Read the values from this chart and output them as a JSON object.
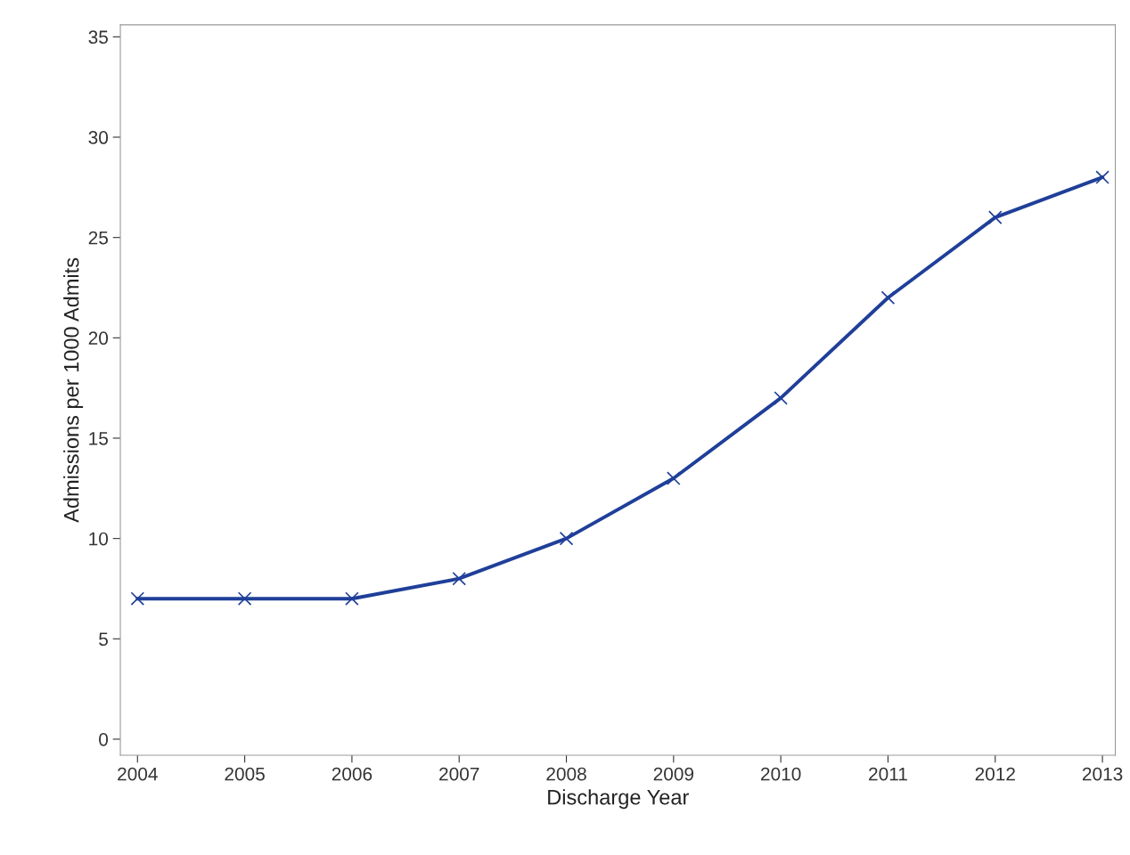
{
  "chart_data": {
    "type": "line",
    "xlabel": "Discharge Year",
    "ylabel": "Admissions per 1000 Admits",
    "x": [
      2004,
      2005,
      2006,
      2007,
      2008,
      2009,
      2010,
      2011,
      2012,
      2013
    ],
    "series": [
      {
        "color": "#1f3f99",
        "values": [
          7,
          7,
          7,
          8,
          10,
          13,
          17,
          22,
          26,
          28
        ]
      }
    ],
    "xlim": [
      2003.84,
      2013.12
    ],
    "xticks": [
      2004,
      2005,
      2006,
      2007,
      2008,
      2009,
      2010,
      2011,
      2012,
      2013
    ],
    "ylim": [
      -0.8,
      35.6
    ],
    "yticks": [
      0,
      5,
      10,
      15,
      20,
      25,
      30,
      35
    ],
    "grid": false,
    "marker": "cross",
    "line_style": "solid"
  }
}
